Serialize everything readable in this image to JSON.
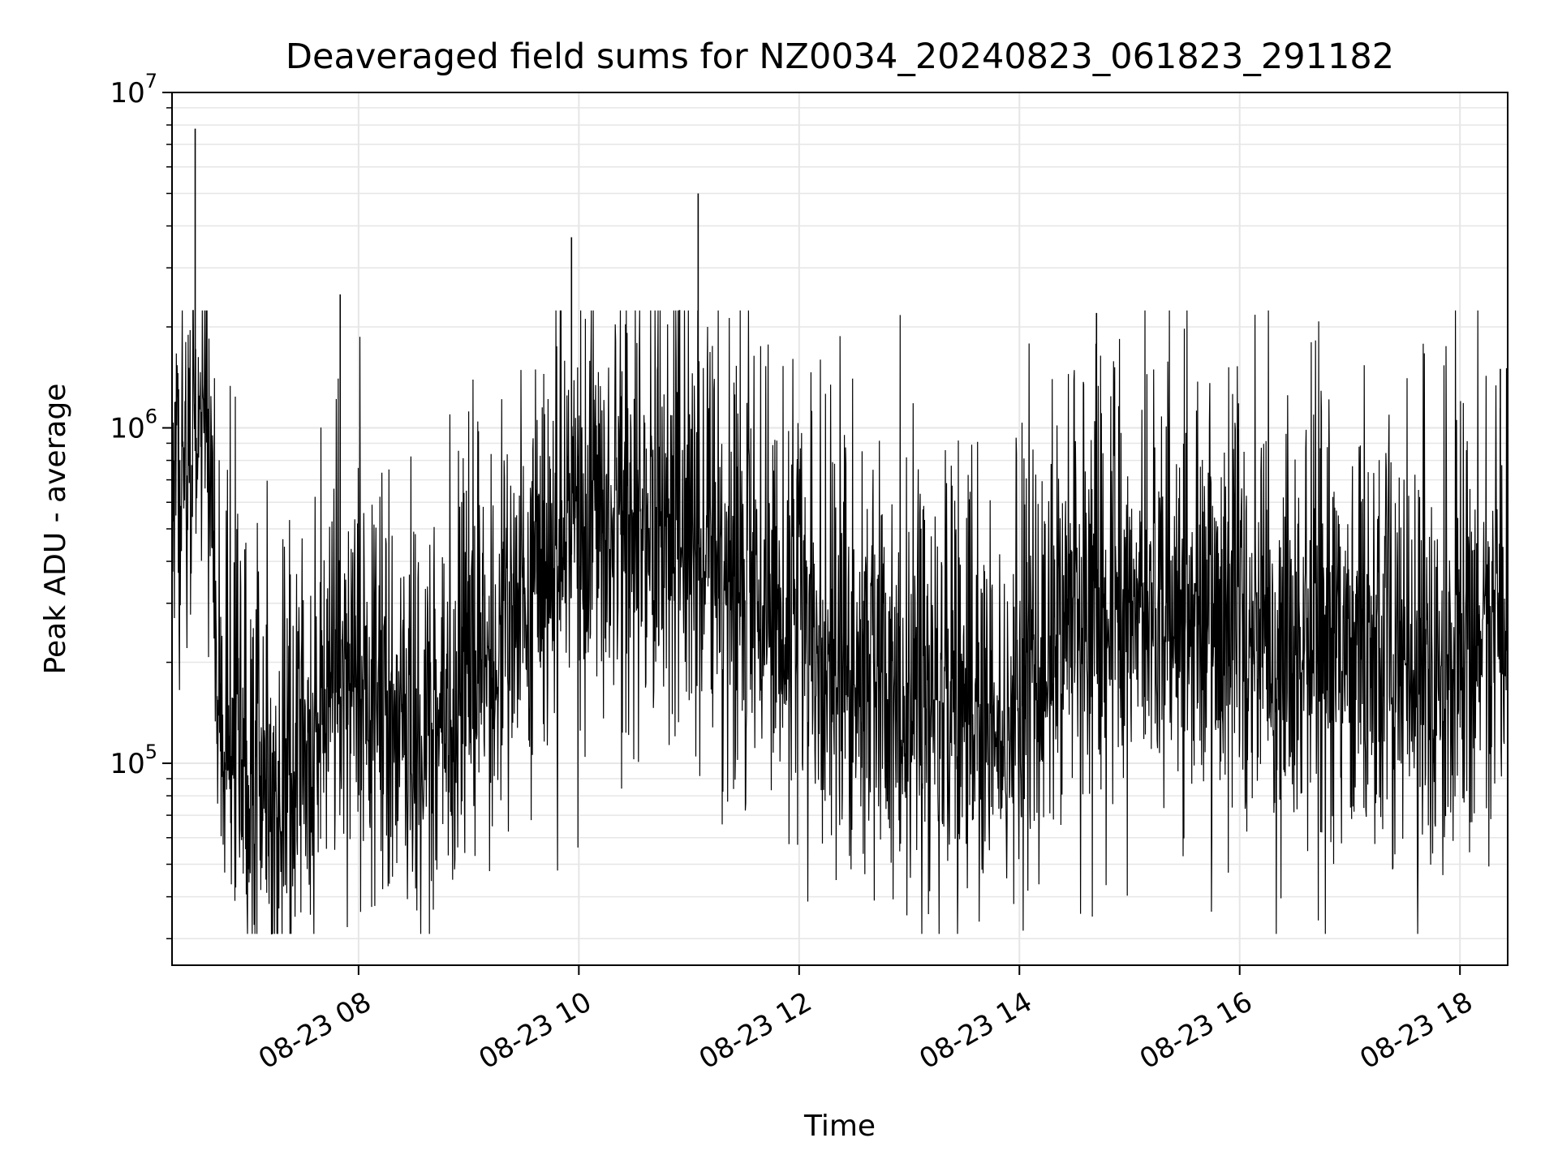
{
  "chart_data": {
    "type": "line",
    "title": "Deaveraged field sums for NZ0034_20240823_061823_291182",
    "xlabel": "Time",
    "ylabel": "Peak ADU - average",
    "yscale": "log",
    "ylim": [
      25000,
      10000000
    ],
    "xlim": [
      "2024-08-23 06:18:23",
      "2024-08-23 18:26:00"
    ],
    "grid": true,
    "line_color": "#000000",
    "grid_color": "#e6e6e6",
    "x_ticks": [
      {
        "value": "2024-08-23 08:00",
        "label": "08-23 08"
      },
      {
        "value": "2024-08-23 10:00",
        "label": "08-23 10"
      },
      {
        "value": "2024-08-23 12:00",
        "label": "08-23 12"
      },
      {
        "value": "2024-08-23 14:00",
        "label": "08-23 14"
      },
      {
        "value": "2024-08-23 16:00",
        "label": "08-23 16"
      },
      {
        "value": "2024-08-23 18:00",
        "label": "08-23 18"
      }
    ],
    "y_ticks": [
      {
        "value": 100000,
        "base": "10",
        "exp": "5"
      },
      {
        "value": 1000000,
        "base": "10",
        "exp": "6"
      },
      {
        "value": 10000000,
        "base": "10",
        "exp": "7"
      }
    ],
    "series": [
      {
        "values_note_free": true,
        "x": [
          "2024-08-23 06:18:23",
          "2024-08-23 06:20",
          "2024-08-23 06:25",
          "2024-08-23 06:31",
          "2024-08-23 06:36",
          "2024-08-23 06:40",
          "2024-08-23 06:44",
          "2024-08-23 06:48",
          "2024-08-23 06:52",
          "2024-08-23 06:56",
          "2024-08-23 07:00",
          "2024-08-23 07:05",
          "2024-08-23 07:10",
          "2024-08-23 07:16",
          "2024-08-23 07:22",
          "2024-08-23 07:28",
          "2024-08-23 07:34",
          "2024-08-23 07:40",
          "2024-08-23 07:45",
          "2024-08-23 07:50",
          "2024-08-23 07:55",
          "2024-08-23 08:00",
          "2024-08-23 08:10",
          "2024-08-23 08:20",
          "2024-08-23 08:30",
          "2024-08-23 08:45",
          "2024-08-23 09:00",
          "2024-08-23 09:10",
          "2024-08-23 09:20",
          "2024-08-23 09:30",
          "2024-08-23 09:40",
          "2024-08-23 09:50",
          "2024-08-23 09:56",
          "2024-08-23 10:05",
          "2024-08-23 10:15",
          "2024-08-23 10:25",
          "2024-08-23 10:40",
          "2024-08-23 10:55",
          "2024-08-23 11:05",
          "2024-08-23 11:13",
          "2024-08-23 11:20",
          "2024-08-23 11:30",
          "2024-08-23 11:45",
          "2024-08-23 12:00",
          "2024-08-23 12:10",
          "2024-08-23 12:20",
          "2024-08-23 12:30",
          "2024-08-23 12:45",
          "2024-08-23 13:00",
          "2024-08-23 13:15",
          "2024-08-23 13:25",
          "2024-08-23 13:35",
          "2024-08-23 13:45",
          "2024-08-23 14:00",
          "2024-08-23 14:15",
          "2024-08-23 14:30",
          "2024-08-23 14:42",
          "2024-08-23 14:55",
          "2024-08-23 15:10",
          "2024-08-23 15:25",
          "2024-08-23 15:40",
          "2024-08-23 15:55",
          "2024-08-23 16:10",
          "2024-08-23 16:25",
          "2024-08-23 16:40",
          "2024-08-23 16:55",
          "2024-08-23 17:10",
          "2024-08-23 17:25",
          "2024-08-23 17:40",
          "2024-08-23 17:55",
          "2024-08-23 18:05",
          "2024-08-23 18:15",
          "2024-08-23 18:22",
          "2024-08-23 18:26"
        ],
        "y": [
          500000,
          900000,
          800000,
          7800000,
          900000,
          600000,
          180000,
          120000,
          110000,
          100000,
          90000,
          80000,
          75000,
          70000,
          80000,
          90000,
          110000,
          130000,
          140000,
          2500000,
          200000,
          180000,
          150000,
          120000,
          110000,
          120000,
          150000,
          200000,
          250000,
          300000,
          350000,
          400000,
          3700000,
          450000,
          500000,
          550000,
          500000,
          450000,
          5000000,
          450000,
          400000,
          350000,
          300000,
          250000,
          200000,
          180000,
          170000,
          160000,
          150000,
          140000,
          130000,
          120000,
          130000,
          150000,
          200000,
          250000,
          2200000,
          300000,
          280000,
          260000,
          250000,
          240000,
          230000,
          220000,
          210000,
          200000,
          190000,
          180000,
          170000,
          160000,
          170000,
          300000,
          1500000,
          250000
        ]
      }
    ]
  }
}
